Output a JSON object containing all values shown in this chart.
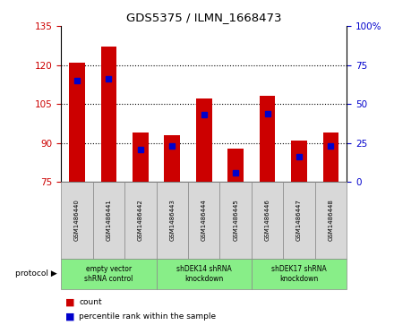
{
  "title": "GDS5375 / ILMN_1668473",
  "samples": [
    "GSM1486440",
    "GSM1486441",
    "GSM1486442",
    "GSM1486443",
    "GSM1486444",
    "GSM1486445",
    "GSM1486446",
    "GSM1486447",
    "GSM1486448"
  ],
  "counts": [
    121,
    127,
    94,
    93,
    107,
    88,
    108,
    91,
    94
  ],
  "percentile_ranks": [
    65,
    66,
    21,
    23,
    43,
    6,
    44,
    16,
    23
  ],
  "ylim_left": [
    75,
    135
  ],
  "ylim_right": [
    0,
    100
  ],
  "yticks_left": [
    75,
    90,
    105,
    120,
    135
  ],
  "yticks_right": [
    0,
    25,
    50,
    75,
    100
  ],
  "bar_color": "#cc0000",
  "percentile_color": "#0000cc",
  "bg_color": "#ffffff",
  "sample_box_color": "#d8d8d8",
  "protocol_box_color": "#88ee88",
  "legend_count_label": "count",
  "legend_pct_label": "percentile rank within the sample",
  "protocol_label": "protocol",
  "groups": [
    {
      "label": "empty vector\nshRNA control",
      "start": 0,
      "end": 2
    },
    {
      "label": "shDEK14 shRNA\nknockdown",
      "start": 3,
      "end": 5
    },
    {
      "label": "shDEK17 shRNA\nknockdown",
      "start": 6,
      "end": 8
    }
  ]
}
